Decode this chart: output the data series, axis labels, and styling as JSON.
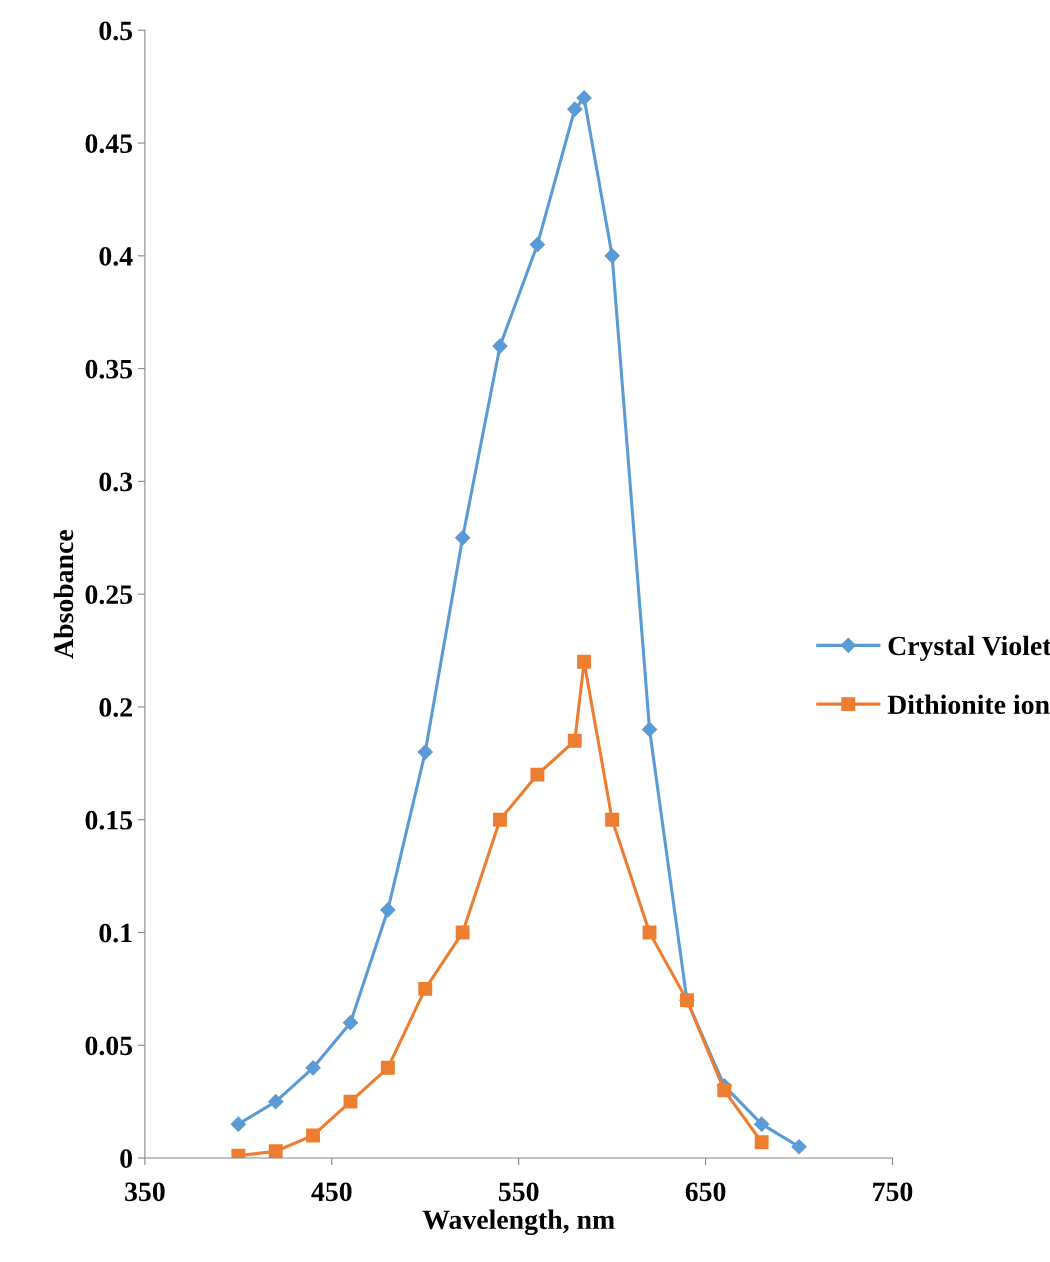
{
  "chart_data": {
    "type": "line",
    "xlabel": "Wavelength, nm",
    "ylabel": "Absobance",
    "xlim": [
      350,
      750
    ],
    "xticks": [
      350,
      450,
      550,
      650,
      750
    ],
    "ylim": [
      0,
      0.5
    ],
    "yticks": [
      0,
      0.05,
      0.1,
      0.15,
      0.2,
      0.25,
      0.3,
      0.35,
      0.4,
      0.45,
      0.5
    ],
    "grid": false,
    "legend": "right",
    "line_style": "solid",
    "series": [
      {
        "name": "Crystal Violet",
        "color": "#5b9bd5",
        "marker": "diamond",
        "x": [
          400,
          420,
          440,
          460,
          480,
          500,
          520,
          540,
          560,
          580,
          585,
          600,
          620,
          640,
          660,
          680,
          700
        ],
        "values": [
          0.015,
          0.025,
          0.04,
          0.06,
          0.11,
          0.18,
          0.275,
          0.36,
          0.405,
          0.465,
          0.47,
          0.4,
          0.19,
          0.07,
          0.032,
          0.015,
          0.005
        ]
      },
      {
        "name": "Dithionite ion",
        "color": "#ed7d31",
        "marker": "square",
        "x": [
          400,
          420,
          440,
          460,
          480,
          500,
          520,
          540,
          560,
          580,
          585,
          600,
          620,
          640,
          660,
          680
        ],
        "values": [
          0.001,
          0.003,
          0.01,
          0.025,
          0.04,
          0.075,
          0.1,
          0.15,
          0.17,
          0.185,
          0.22,
          0.15,
          0.1,
          0.07,
          0.03,
          0.007
        ]
      }
    ]
  }
}
